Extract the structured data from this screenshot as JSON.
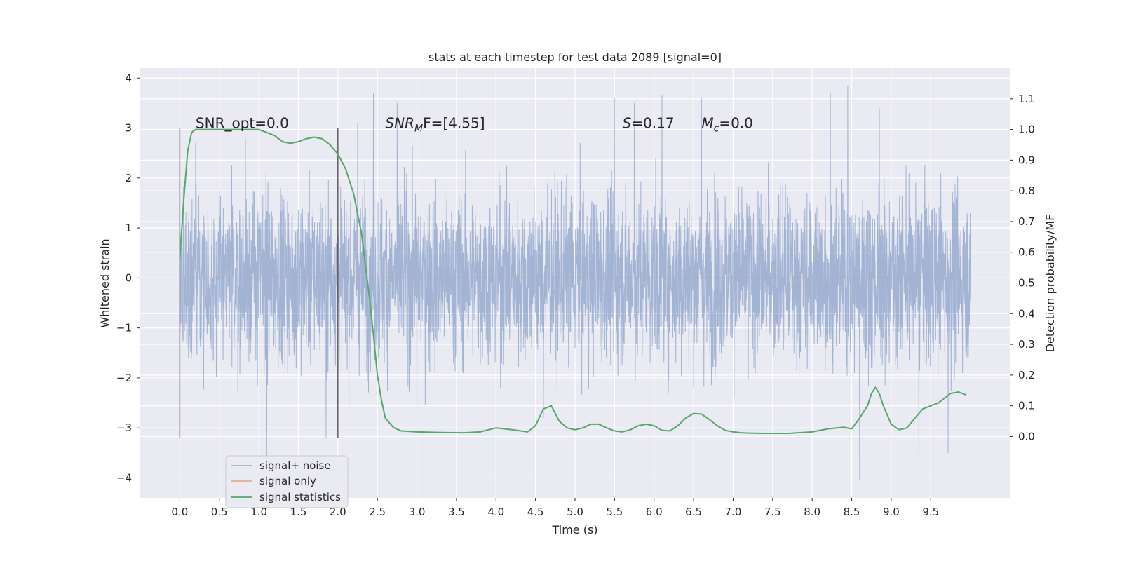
{
  "chart_data": {
    "type": "line",
    "title": "stats at each timestep for test data 2089 [signal=0]",
    "xlabel": "Time (s)",
    "ylabel": "Whitened strain",
    "ylabel_right": "Detection probability/MF",
    "xlim": [
      -0.5,
      10.5
    ],
    "ylim": [
      -4.4,
      4.2
    ],
    "ylim_right": [
      -0.2,
      1.2
    ],
    "xticks": [
      "0.0",
      "0.5",
      "1.0",
      "1.5",
      "2.0",
      "2.5",
      "3.0",
      "3.5",
      "4.0",
      "4.5",
      "5.0",
      "5.5",
      "6.0",
      "6.5",
      "7.0",
      "7.5",
      "8.0",
      "8.5",
      "9.0",
      "9.5"
    ],
    "yticks": [
      "−4",
      "−3",
      "−2",
      "−1",
      "0",
      "1",
      "2",
      "3",
      "4"
    ],
    "yticks_right": [
      "0.0",
      "0.1",
      "0.2",
      "0.3",
      "0.4",
      "0.5",
      "0.6",
      "0.7",
      "0.8",
      "0.9",
      "1.0",
      "1.1"
    ],
    "grid": true,
    "legend_position": "lower-left",
    "colors": {
      "background": "#EAEAF2",
      "noise": "#4C72B0",
      "signal": "#DD8452",
      "stats": "#55A868",
      "grid": "#FFFFFF",
      "marker_line": "#555555"
    },
    "series": [
      {
        "name": "signal+ noise",
        "axis": "left",
        "style": "dense-noise",
        "x_range": [
          0.0,
          10.0
        ],
        "values_range": [
          -4.05,
          3.85
        ],
        "peak_points": [
          [
            0.2,
            2.7
          ],
          [
            0.83,
            2.8
          ],
          [
            1.1,
            -3.6
          ],
          [
            1.85,
            -3.2
          ],
          [
            2.25,
            3.1
          ],
          [
            2.45,
            3.7
          ],
          [
            2.75,
            3.5
          ],
          [
            3.0,
            -3.25
          ],
          [
            4.6,
            -2.8
          ],
          [
            5.5,
            3.6
          ],
          [
            5.75,
            3.5
          ],
          [
            6.1,
            3.65
          ],
          [
            6.6,
            3.6
          ],
          [
            8.23,
            3.7
          ],
          [
            8.45,
            3.85
          ],
          [
            8.6,
            -4.05
          ],
          [
            8.85,
            3.4
          ],
          [
            9.35,
            -3.5
          ],
          [
            9.72,
            -3.5
          ]
        ]
      },
      {
        "name": "signal only",
        "axis": "left",
        "x": [
          0.0,
          10.0
        ],
        "values": [
          0.0,
          0.0
        ]
      },
      {
        "name": "signal statistics",
        "axis": "right",
        "x": [
          0.0,
          0.05,
          0.1,
          0.15,
          0.2,
          0.3,
          0.5,
          0.7,
          0.9,
          1.0,
          1.1,
          1.2,
          1.3,
          1.4,
          1.5,
          1.6,
          1.7,
          1.8,
          1.9,
          2.0,
          2.1,
          2.2,
          2.3,
          2.4,
          2.45,
          2.5,
          2.55,
          2.6,
          2.7,
          2.8,
          3.0,
          3.3,
          3.6,
          3.8,
          4.0,
          4.2,
          4.4,
          4.5,
          4.6,
          4.7,
          4.8,
          4.9,
          5.0,
          5.1,
          5.2,
          5.3,
          5.4,
          5.5,
          5.6,
          5.7,
          5.8,
          5.9,
          6.0,
          6.1,
          6.2,
          6.3,
          6.4,
          6.5,
          6.6,
          6.7,
          6.8,
          6.9,
          7.0,
          7.1,
          7.2,
          7.4,
          7.7,
          8.0,
          8.2,
          8.4,
          8.5,
          8.6,
          8.7,
          8.75,
          8.8,
          8.85,
          8.9,
          9.0,
          9.1,
          9.2,
          9.3,
          9.4,
          9.6,
          9.75,
          9.85,
          9.95
        ],
        "values": [
          0.58,
          0.77,
          0.93,
          0.99,
          1.0,
          1.0,
          1.0,
          1.0,
          1.0,
          1.0,
          0.99,
          0.98,
          0.96,
          0.955,
          0.96,
          0.97,
          0.975,
          0.97,
          0.95,
          0.92,
          0.87,
          0.79,
          0.66,
          0.45,
          0.33,
          0.2,
          0.12,
          0.06,
          0.03,
          0.018,
          0.015,
          0.013,
          0.012,
          0.015,
          0.028,
          0.022,
          0.015,
          0.035,
          0.09,
          0.1,
          0.05,
          0.028,
          0.022,
          0.028,
          0.04,
          0.04,
          0.028,
          0.018,
          0.015,
          0.022,
          0.035,
          0.04,
          0.035,
          0.02,
          0.018,
          0.035,
          0.06,
          0.075,
          0.073,
          0.055,
          0.035,
          0.02,
          0.015,
          0.012,
          0.011,
          0.01,
          0.01,
          0.015,
          0.025,
          0.03,
          0.025,
          0.06,
          0.1,
          0.14,
          0.16,
          0.14,
          0.1,
          0.04,
          0.022,
          0.028,
          0.06,
          0.09,
          0.11,
          0.14,
          0.145,
          0.135
        ]
      }
    ],
    "vertical_markers": [
      [
        0.0,
        -3.2,
        3.0
      ],
      [
        2.0,
        -3.2,
        3.0
      ]
    ],
    "annotations": [
      {
        "text": "SNR_opt=0.0",
        "x": 0.2,
        "y": 3.0
      },
      {
        "text": "SNR",
        "sub": "M",
        "after": "F=[4.55]",
        "italic": true,
        "x": 2.6,
        "y": 3.0
      },
      {
        "text": "S",
        "after": "=0.17",
        "italic": true,
        "x": 5.6,
        "y": 3.0
      },
      {
        "text": "M",
        "sub": "c",
        "after": "=0.0",
        "italic": true,
        "x": 6.6,
        "y": 3.0
      }
    ]
  }
}
